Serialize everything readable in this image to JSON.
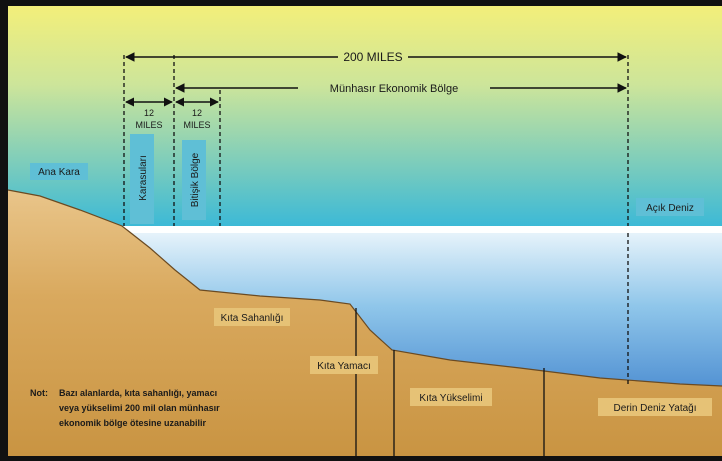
{
  "diagram": {
    "measures": {
      "total": "200 MILES",
      "eez": "Münhasır Ekonomik Bölge",
      "territorial_nm": "12",
      "territorial_unit": "MILES",
      "contiguous_nm": "12",
      "contiguous_unit": "MILES"
    },
    "zones": {
      "territorial": "Karasuları",
      "contiguous": "Bitişik Bölge"
    },
    "areas": {
      "land": "Ana Kara",
      "high_seas": "Açık Deniz",
      "shelf": "Kıta Sahanlığı",
      "slope": "Kıta Yamacı",
      "rise": "Kıta Yükselimi",
      "deep_seabed": "Derin Deniz Yatağı"
    },
    "note": {
      "prefix": "Not:",
      "line1": "Bazı alanlarda, kıta sahanlığı, yamacı",
      "line2": "veya yükselimi 200 mil olan münhasır",
      "line3": "ekonomik bölge ötesine uzanabilir"
    },
    "colors": {
      "sky_top": "#f3ef7a",
      "sky_bottom": "#38b8d8",
      "sea_top": "#e9f4fb",
      "sea_bottom": "#1f66c0",
      "land": "#d8a45a",
      "label_box": "#5fbfd6",
      "arrow": "#111111"
    }
  }
}
